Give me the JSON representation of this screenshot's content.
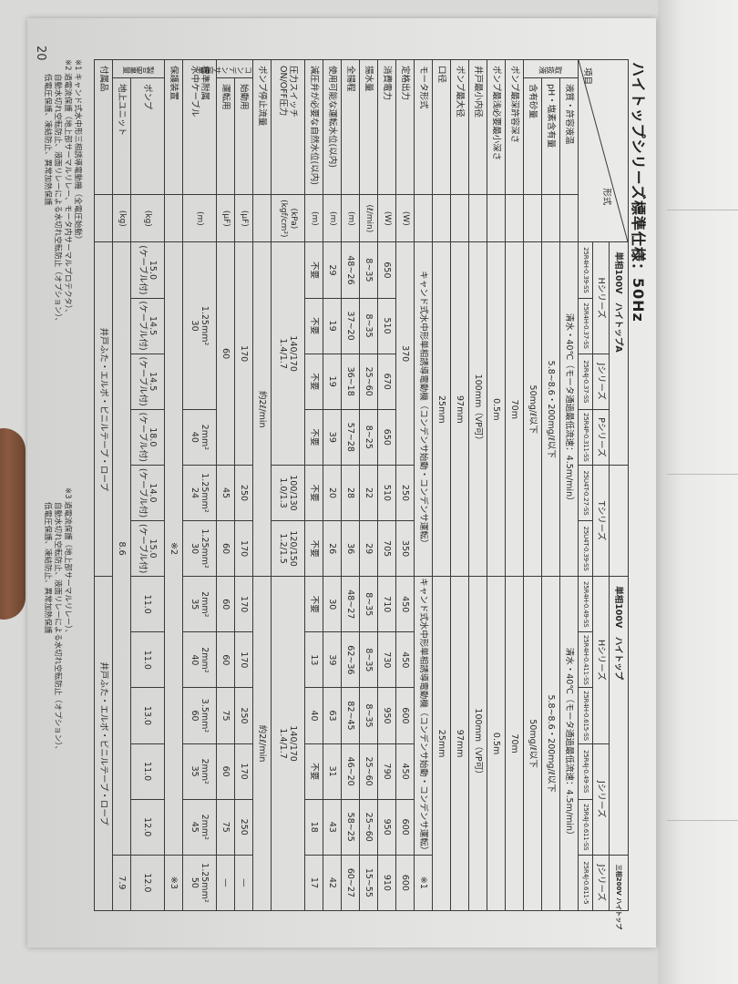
{
  "title": "ハイトップシリーズ標準仕様：50Hz",
  "page_number": "20",
  "header": {
    "item_label": "項目",
    "model_label": "形式",
    "bands": [
      {
        "label": "単相100V　ハイトップA",
        "span": 4
      },
      {
        "label": "",
        "span": 2
      },
      {
        "label": "単相100V　ハイトップ",
        "span": 5
      },
      {
        "label": "三相200V ハイトップ",
        "span": 1,
        "small": true
      }
    ],
    "series": [
      {
        "label": "Hシリーズ",
        "span": 2
      },
      {
        "label": "Jシリーズ",
        "span": 1
      },
      {
        "label": "Pシリーズ",
        "span": 1
      },
      {
        "label": "Tシリーズ",
        "span": 2
      },
      {
        "label": "Hシリーズ",
        "span": 3
      },
      {
        "label": "Jシリーズ",
        "span": 2
      },
      {
        "label": "Jシリーズ",
        "span": 1
      }
    ],
    "models": [
      "25R4H-0.39-SS",
      "25R4H-0.37-SS",
      "25R4J-0.37-SS",
      "25R4P-0.311-SS",
      "25U4T-0.27-SS",
      "25U4T-0.39-SS",
      "25R4H-0.49-SS",
      "25R4H-0.411-SS",
      "25R4H-0.615-SS",
      "25R4J-0.49-SS",
      "25R4J-0.611-SS",
      "25R4J-0.611-5"
    ]
  },
  "rows": [
    {
      "group": "取扱液",
      "label": "液質・許容液温",
      "unit": "",
      "cells": [
        {
          "v": "清水・40℃（モータ通過最低流速：4.5m/min）",
          "span": 6
        },
        {
          "v": "清水・40℃（モータ通過最低流速：4.5m/min）",
          "span": 6
        }
      ]
    },
    {
      "group": "取扱液",
      "label": "pH・塩素含有量",
      "unit": "",
      "cells": [
        {
          "v": "5.8~8.6・200mg/ℓ以下",
          "span": 6
        },
        {
          "v": "5.8~8.6・200mg/ℓ以下",
          "span": 6
        }
      ]
    },
    {
      "group": "取扱液",
      "label": "含有砂量",
      "unit": "",
      "cells": [
        {
          "v": "50mg/ℓ以下",
          "span": 6
        },
        {
          "v": "50mg/ℓ以下",
          "span": 6
        }
      ]
    },
    {
      "label": "ポンプ最深許容深さ",
      "unit": "",
      "cells": [
        {
          "v": "70m",
          "span": 6
        },
        {
          "v": "70m",
          "span": 6
        }
      ]
    },
    {
      "label": "ポンプ最浅必要最小深さ",
      "unit": "",
      "cells": [
        {
          "v": "0.5m",
          "span": 6
        },
        {
          "v": "0.5m",
          "span": 6
        }
      ]
    },
    {
      "label": "井戸最小内径",
      "unit": "",
      "cells": [
        {
          "v": "100mm（VP可）",
          "span": 6
        },
        {
          "v": "100mm（VP可）",
          "span": 6
        }
      ]
    },
    {
      "label": "ポンプ最大径",
      "unit": "",
      "cells": [
        {
          "v": "97mm",
          "span": 6
        },
        {
          "v": "97mm",
          "span": 6
        }
      ]
    },
    {
      "label": "口径",
      "unit": "",
      "cells": [
        {
          "v": "25mm",
          "span": 6
        },
        {
          "v": "25mm",
          "span": 6
        }
      ]
    },
    {
      "label": "モータ形式",
      "unit": "",
      "cells": [
        {
          "v": "キャンド式水中形単相誘導電動機（コンデンサ始動・コンデンサ運転）",
          "span": 6
        },
        {
          "v": "キャンド式水中形単相誘導電動機（コンデンサ始動・コンデンサ運転）",
          "span": 5
        },
        {
          "v": "※1",
          "span": 1
        }
      ]
    },
    {
      "label": "定格出力",
      "unit": "(W)",
      "cells": [
        {
          "v": "370",
          "span": 4
        },
        {
          "v": "250"
        },
        {
          "v": "350"
        },
        {
          "v": "450"
        },
        {
          "v": "450"
        },
        {
          "v": "600"
        },
        {
          "v": "450"
        },
        {
          "v": "600"
        },
        {
          "v": "600"
        }
      ]
    },
    {
      "label": "消費電力",
      "unit": "(W)",
      "cells": [
        {
          "v": "650"
        },
        {
          "v": "510"
        },
        {
          "v": "670"
        },
        {
          "v": "650"
        },
        {
          "v": "510"
        },
        {
          "v": "705"
        },
        {
          "v": "710"
        },
        {
          "v": "730"
        },
        {
          "v": "950"
        },
        {
          "v": "790"
        },
        {
          "v": "950"
        },
        {
          "v": "910"
        }
      ]
    },
    {
      "label": "揚水量",
      "unit": "(ℓ/min)",
      "cells": [
        {
          "v": "8~35"
        },
        {
          "v": "8~35"
        },
        {
          "v": "25~60"
        },
        {
          "v": "8~25"
        },
        {
          "v": "22"
        },
        {
          "v": "29"
        },
        {
          "v": "8~35"
        },
        {
          "v": "8~35"
        },
        {
          "v": "8~35"
        },
        {
          "v": "25~60"
        },
        {
          "v": "25~60"
        },
        {
          "v": "15~55"
        }
      ]
    },
    {
      "label": "全揚程",
      "unit": "(m)",
      "cells": [
        {
          "v": "48~26"
        },
        {
          "v": "37~20"
        },
        {
          "v": "36~18"
        },
        {
          "v": "57~28"
        },
        {
          "v": "28"
        },
        {
          "v": "36"
        },
        {
          "v": "48~27"
        },
        {
          "v": "62~36"
        },
        {
          "v": "82~45"
        },
        {
          "v": "46~20"
        },
        {
          "v": "58~25"
        },
        {
          "v": "60~27"
        }
      ]
    },
    {
      "label": "使用可能な運転水位(以内)",
      "unit": "(m)",
      "cells": [
        {
          "v": "29"
        },
        {
          "v": "19"
        },
        {
          "v": "19"
        },
        {
          "v": "39"
        },
        {
          "v": "20"
        },
        {
          "v": "26"
        },
        {
          "v": "30"
        },
        {
          "v": "39"
        },
        {
          "v": "63"
        },
        {
          "v": "31"
        },
        {
          "v": "43"
        },
        {
          "v": "42"
        }
      ]
    },
    {
      "label": "減圧弁が必要な自然水位(以内)",
      "unit": "(m)",
      "cells": [
        {
          "v": "不要"
        },
        {
          "v": "不要"
        },
        {
          "v": "不要"
        },
        {
          "v": "不要"
        },
        {
          "v": "不要"
        },
        {
          "v": "不要"
        },
        {
          "v": "不要"
        },
        {
          "v": "13"
        },
        {
          "v": "40"
        },
        {
          "v": "不要"
        },
        {
          "v": "18"
        },
        {
          "v": "17"
        }
      ]
    },
    {
      "label": "圧力スイッチ",
      "label2": "ON/OFF圧力",
      "unit": "(kPa)",
      "unit2": "(kgf/cm²)",
      "tall": true,
      "cells": [
        {
          "v": "140/170",
          "v2": "1.4/1.7",
          "span": 4
        },
        {
          "v": "100/130",
          "v2": "1.0/1.3"
        },
        {
          "v": "120/150",
          "v2": "1.2/1.5"
        },
        {
          "v": "140/170",
          "v2": "1.4/1.7",
          "span": 6
        }
      ]
    },
    {
      "label": "ポンプ停止流量",
      "unit": "",
      "cells": [
        {
          "v": "約2ℓ/min",
          "span": 6
        },
        {
          "v": "約2ℓ/min",
          "span": 6
        }
      ]
    },
    {
      "group": "コンデンサ容量",
      "label": "始動用",
      "unit": "(μF)",
      "cells": [
        {
          "v": "170",
          "span": 4
        },
        {
          "v": "250"
        },
        {
          "v": "170"
        },
        {
          "v": "170"
        },
        {
          "v": "170"
        },
        {
          "v": "250"
        },
        {
          "v": "170"
        },
        {
          "v": "250"
        },
        {
          "v": "—"
        }
      ]
    },
    {
      "group": "コンデンサ容量",
      "label": "運転用",
      "unit": "(μF)",
      "cells": [
        {
          "v": "60",
          "span": 4
        },
        {
          "v": "45"
        },
        {
          "v": "60"
        },
        {
          "v": "60"
        },
        {
          "v": "60"
        },
        {
          "v": "75"
        },
        {
          "v": "60"
        },
        {
          "v": "75"
        },
        {
          "v": "—"
        }
      ]
    },
    {
      "label": "標準附属",
      "label2": "水中ケーブル",
      "unit": "(m)",
      "tall": true,
      "cells": [
        {
          "v": "1.25mm²",
          "v2": "30",
          "span": 3
        },
        {
          "v": "2mm²",
          "v2": "40"
        },
        {
          "v": "1.25mm²",
          "v2": "24"
        },
        {
          "v": "1.25mm²",
          "v2": "30"
        },
        {
          "v": "2mm²",
          "v2": "35"
        },
        {
          "v": "2mm²",
          "v2": "40"
        },
        {
          "v": "3.5mm²",
          "v2": "60"
        },
        {
          "v": "2mm²",
          "v2": "35"
        },
        {
          "v": "2mm²",
          "v2": "45"
        },
        {
          "v": "1.25mm²",
          "v2": "50"
        }
      ]
    },
    {
      "label": "保護装置",
      "unit": "",
      "cells": [
        {
          "v": "※2",
          "span": 11
        },
        {
          "v": "※3"
        }
      ]
    },
    {
      "group": "製品重量",
      "label": "ポンプ",
      "unit": "(kg)",
      "tall": true,
      "cells": [
        {
          "v": "15.0",
          "v2": "(ケーブル付)"
        },
        {
          "v": "14.5",
          "v2": "(ケーブル付)"
        },
        {
          "v": "14.5",
          "v2": "(ケーブル付)"
        },
        {
          "v": "18.0",
          "v2": "(ケーブル付)"
        },
        {
          "v": "14.0",
          "v2": "(ケーブル付)"
        },
        {
          "v": "15.0",
          "v2": "(ケーブル付)"
        },
        {
          "v": "11.0"
        },
        {
          "v": "11.0"
        },
        {
          "v": "13.0"
        },
        {
          "v": "11.0"
        },
        {
          "v": "12.0"
        },
        {
          "v": "12.0"
        }
      ]
    },
    {
      "group": "製品重量",
      "label": "地上ユニット",
      "unit": "(kg)",
      "cells": [
        {
          "v": "8.6",
          "span": 11
        },
        {
          "v": "7.9"
        }
      ]
    },
    {
      "label": "付属品",
      "unit": "",
      "cells": [
        {
          "v": "井戸ふた・エルボ・ビニルテープ・ロープ",
          "span": 6
        },
        {
          "v": "井戸ふた・エルボ・ビニルテープ・ロープ",
          "span": 6
        }
      ]
    }
  ],
  "notes": {
    "n1": "※1 キャンド式水中形三相誘導電動機（全電圧始動）",
    "n2a": "※2 過電流保護（地上部サーマルリレー、モータ内サーマルプロテクタ）、",
    "n2b": "自動水切れ空転防止、液面リレーによる水切れ空転防止（オプション）、",
    "n2c": "低電圧保護、凍結防止、異常加熱保護",
    "n3a": "※3 過電流保護（地上部サーマルリレー）、",
    "n3b": "自動水切れ空転防止、液面リレーによる水切れ空転防止（オプション）、",
    "n3c": "低電圧保護、凍結防止、異常加熱保護"
  }
}
